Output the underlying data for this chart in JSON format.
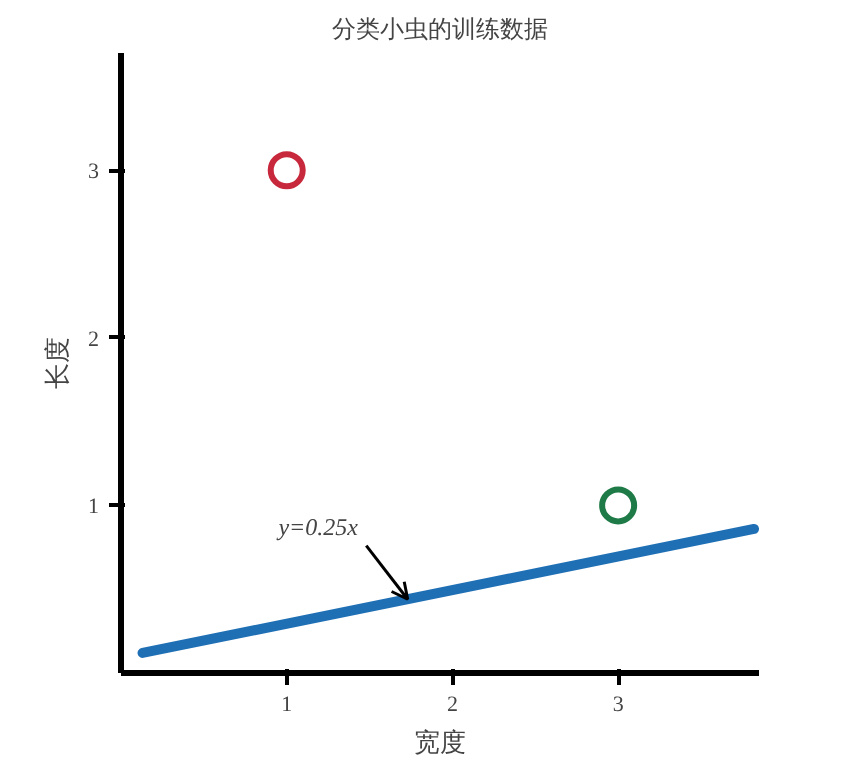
{
  "chart_data": {
    "type": "scatter",
    "title": "分类小虫的训练数据",
    "xlabel": "宽度",
    "ylabel": "长度",
    "xlim": [
      0,
      3.85
    ],
    "ylim": [
      0,
      3.7
    ],
    "xticks": [
      1,
      2,
      3
    ],
    "yticks": [
      1,
      2,
      3
    ],
    "grid": false,
    "series": [
      {
        "marker": "circle",
        "x": [
          1,
          3
        ],
        "values": [
          3,
          1
        ],
        "colors": [
          "#c8283c",
          "#1e7a46"
        ]
      },
      {
        "type": "line",
        "x": [
          0.13,
          3.82
        ],
        "values": [
          0.12,
          0.86
        ],
        "color": "#1f6fb5"
      }
    ],
    "annotations": [
      {
        "text": "y=0.25x",
        "x": 1.73,
        "y": 0.44
      }
    ]
  }
}
